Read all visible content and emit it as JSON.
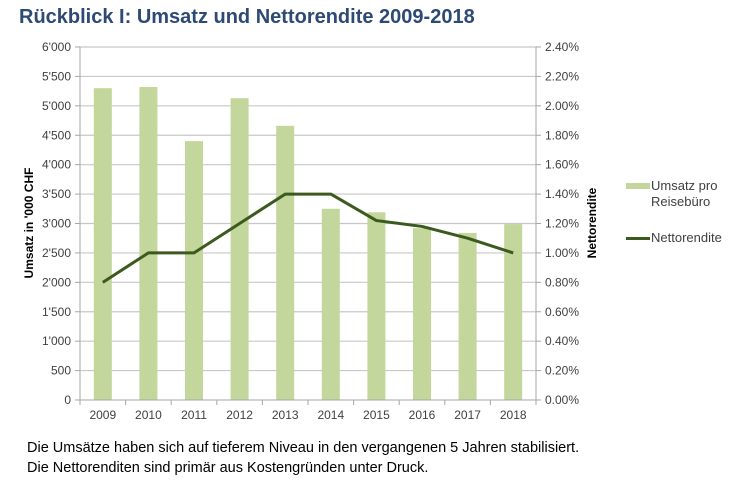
{
  "chart_data": {
    "type": "bar",
    "title": "Rückblick I: Umsatz und Nettorendite 2009-2018",
    "categories": [
      "2009",
      "2010",
      "2011",
      "2012",
      "2013",
      "2014",
      "2015",
      "2016",
      "2017",
      "2018"
    ],
    "series": [
      {
        "name": "Umsatz pro Reisebüro",
        "type": "bar",
        "axis": "left",
        "color": "#c3d69b",
        "values": [
          5300,
          5320,
          4400,
          5130,
          4660,
          3250,
          3190,
          2920,
          2840,
          2990
        ]
      },
      {
        "name": "Nettorendite",
        "type": "line",
        "axis": "right",
        "color": "#3c5a1e",
        "values": [
          0.8,
          1.0,
          1.0,
          1.2,
          1.4,
          1.4,
          1.22,
          1.18,
          1.1,
          1.0
        ]
      }
    ],
    "ylabel": "Umsatz in '000 CHF",
    "y2label": "Nettorendite",
    "ylim": [
      0,
      6000
    ],
    "y2lim": [
      0,
      2.4
    ],
    "yticks": [
      "0",
      "500",
      "1'000",
      "1'500",
      "2'000",
      "2'500",
      "3'000",
      "3'500",
      "4'000",
      "4'500",
      "5'000",
      "5'500",
      "6'000"
    ],
    "y2ticks": [
      "0.00%",
      "0.20%",
      "0.40%",
      "0.60%",
      "0.80%",
      "1.00%",
      "1.20%",
      "1.40%",
      "1.60%",
      "1.80%",
      "2.00%",
      "2.20%",
      "2.40%"
    ],
    "grid": true,
    "legend": "right"
  },
  "legend": {
    "items": [
      {
        "label": "Umsatz pro Reisebüro"
      },
      {
        "label": "Nettorendite"
      }
    ]
  },
  "caption": {
    "line1": "Die Umsätze haben sich auf tieferem Niveau in den vergangenen 5 Jahren stabilisiert.",
    "line2": "Die Nettorenditen sind primär aus Kostengründen unter Druck."
  }
}
